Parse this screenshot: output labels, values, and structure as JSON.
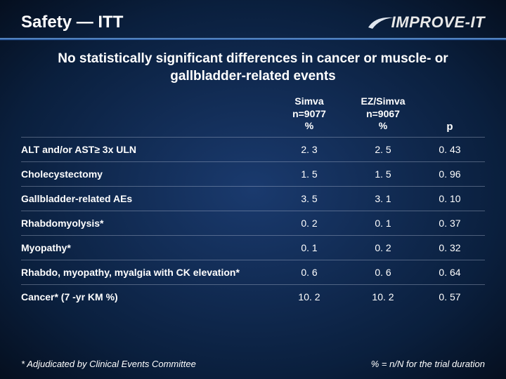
{
  "header": {
    "title": "Safety — ITT",
    "logo_text": "IMPROVE-IT"
  },
  "subtitle": "No statistically significant differences in cancer or muscle- or gallbladder-related events",
  "table": {
    "columns": {
      "c1": {
        "line1": "Simva",
        "line2": "n=9077",
        "line3": "%"
      },
      "c2": {
        "line1": "EZ/Simva",
        "line2": "n=9067",
        "line3": "%"
      },
      "c3": "p"
    },
    "rows": [
      {
        "label": "ALT and/or AST≥ 3x ULN",
        "v1": "2. 3",
        "v2": "2. 5",
        "p": "0. 43"
      },
      {
        "label": "Cholecystectomy",
        "v1": "1. 5",
        "v2": "1. 5",
        "p": "0. 96"
      },
      {
        "label": "Gallbladder-related AEs",
        "v1": "3. 5",
        "v2": "3. 1",
        "p": "0. 10"
      },
      {
        "label": "Rhabdomyolysis*",
        "v1": "0. 2",
        "v2": "0. 1",
        "p": "0. 37"
      },
      {
        "label": "Myopathy*",
        "v1": "0. 1",
        "v2": "0. 2",
        "p": "0. 32"
      },
      {
        "label": "Rhabdo, myopathy, myalgia with CK elevation*",
        "v1": "0. 6",
        "v2": "0. 6",
        "p": "0. 64"
      },
      {
        "label": "Cancer* (7 -yr KM %)",
        "v1": "10. 2",
        "v2": "10. 2",
        "p": "0. 57"
      }
    ]
  },
  "footer": {
    "left": "* Adjudicated by Clinical Events Committee",
    "right": "% = n/N for the trial duration"
  },
  "style": {
    "bg_center": "#1a3a6e",
    "bg_edge": "#050f1f",
    "divider_color": "#2456a0",
    "text_color": "#ffffff",
    "row_border": "rgba(200,210,230,0.35)",
    "title_fontsize": 24,
    "subtitle_fontsize": 19,
    "body_fontsize": 14
  }
}
